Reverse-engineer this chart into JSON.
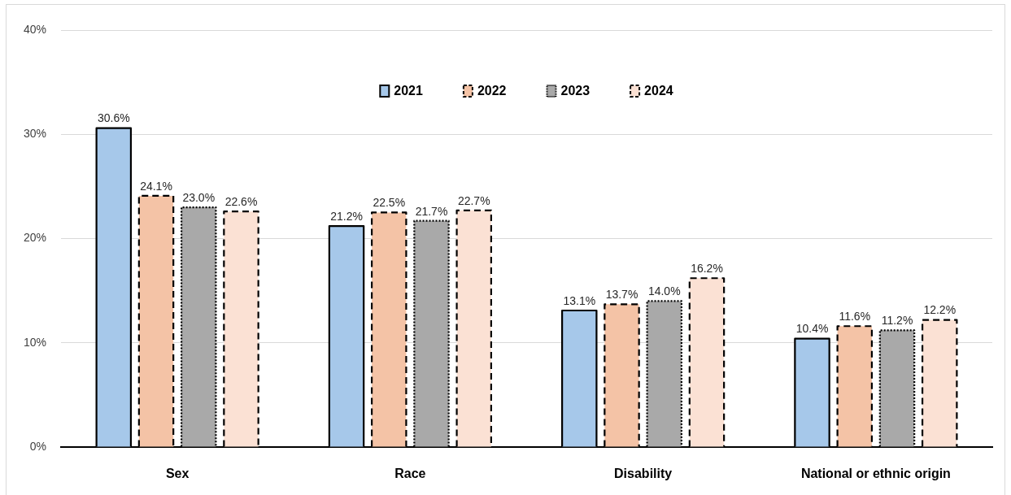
{
  "chart_data": {
    "type": "bar",
    "categories": [
      "Sex",
      "Race",
      "Disability",
      "National or ethnic origin"
    ],
    "series": [
      {
        "name": "2021",
        "color": "#a6c8ea",
        "line_style": "solid",
        "values": [
          30.6,
          21.2,
          13.1,
          10.4
        ],
        "value_labels": [
          "30.6%",
          "21.2%",
          "13.1%",
          "10.4%"
        ]
      },
      {
        "name": "2022",
        "color": "#f4c3a6",
        "line_style": "dashed",
        "values": [
          24.1,
          22.5,
          13.7,
          11.6
        ],
        "value_labels": [
          "24.1%",
          "22.5%",
          "13.7%",
          "11.6%"
        ]
      },
      {
        "name": "2023",
        "color": "#a9a9a9",
        "line_style": "dotted",
        "values": [
          23.0,
          21.7,
          14.0,
          11.2
        ],
        "value_labels": [
          "23.0%",
          "21.7%",
          "14.0%",
          "11.2%"
        ]
      },
      {
        "name": "2024",
        "color": "#fbe1d4",
        "line_style": "dashed",
        "values": [
          22.6,
          22.7,
          16.2,
          12.2
        ],
        "value_labels": [
          "22.6%",
          "22.7%",
          "16.2%",
          "12.2%"
        ]
      }
    ],
    "ylim": [
      0,
      40
    ],
    "yticks": [
      {
        "value": 0,
        "label": "0%"
      },
      {
        "value": 10,
        "label": "10%"
      },
      {
        "value": 20,
        "label": "20%"
      },
      {
        "value": 30,
        "label": "30%"
      },
      {
        "value": 40,
        "label": "40%"
      }
    ],
    "grid": "y",
    "legend": "top"
  }
}
